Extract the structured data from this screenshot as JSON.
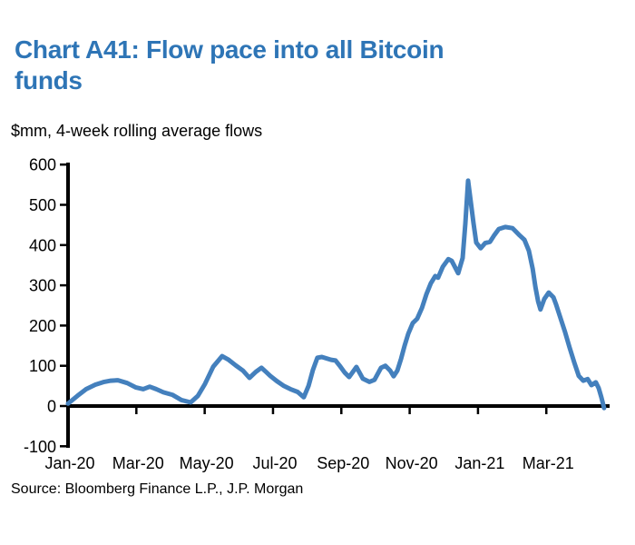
{
  "chart_data": {
    "type": "line",
    "title": "Chart A41: Flow pace into all Bitcoin\nfunds",
    "units_label": "$mm, 4-week rolling average flows",
    "source": "Source: Bloomberg Finance L.P., J.P. Morgan",
    "grid": false,
    "legend": "none",
    "x_axis": {
      "unit": "months since Jan-2020",
      "tick_months": [
        0,
        2,
        4,
        6,
        8,
        10,
        12,
        14
      ],
      "tick_labels": [
        "Jan-20",
        "Mar-20",
        "May-20",
        "Jul-20",
        "Sep-20",
        "Nov-20",
        "Jan-21",
        "Mar-21"
      ],
      "range_months": [
        0,
        15.85
      ]
    },
    "y_axis": {
      "ticks": [
        -100,
        0,
        100,
        200,
        300,
        400,
        500,
        600
      ],
      "min": -100,
      "max": 600
    },
    "colors": {
      "line": "#4480BD",
      "title": "#2E75B6",
      "axis": "#000000",
      "text": "#000000"
    },
    "series": [
      {
        "name": "4-week rolling average flows into all Bitcoin funds ($mm)",
        "points": [
          [
            0.0,
            6
          ],
          [
            0.27,
            25
          ],
          [
            0.53,
            42
          ],
          [
            0.8,
            53
          ],
          [
            1.06,
            60
          ],
          [
            1.25,
            63
          ],
          [
            1.46,
            64
          ],
          [
            1.73,
            57
          ],
          [
            1.99,
            46
          ],
          [
            2.2,
            42
          ],
          [
            2.39,
            48
          ],
          [
            2.58,
            42
          ],
          [
            2.79,
            34
          ],
          [
            3.05,
            28
          ],
          [
            3.32,
            15
          ],
          [
            3.59,
            9
          ],
          [
            3.8,
            25
          ],
          [
            4.01,
            55
          ],
          [
            4.25,
            98
          ],
          [
            4.51,
            124
          ],
          [
            4.7,
            115
          ],
          [
            4.91,
            101
          ],
          [
            5.12,
            88
          ],
          [
            5.31,
            70
          ],
          [
            5.5,
            85
          ],
          [
            5.66,
            95
          ],
          [
            5.79,
            85
          ],
          [
            5.92,
            75
          ],
          [
            6.11,
            62
          ],
          [
            6.32,
            50
          ],
          [
            6.51,
            42
          ],
          [
            6.72,
            35
          ],
          [
            6.9,
            22
          ],
          [
            7.04,
            50
          ],
          [
            7.17,
            90
          ],
          [
            7.3,
            120
          ],
          [
            7.43,
            122
          ],
          [
            7.7,
            115
          ],
          [
            7.83,
            113
          ],
          [
            7.97,
            98
          ],
          [
            8.1,
            83
          ],
          [
            8.23,
            72
          ],
          [
            8.44,
            97
          ],
          [
            8.63,
            68
          ],
          [
            8.82,
            60
          ],
          [
            8.97,
            65
          ],
          [
            9.16,
            95
          ],
          [
            9.29,
            100
          ],
          [
            9.43,
            88
          ],
          [
            9.53,
            74
          ],
          [
            9.64,
            88
          ],
          [
            9.75,
            118
          ],
          [
            9.85,
            150
          ],
          [
            9.96,
            180
          ],
          [
            10.09,
            206
          ],
          [
            10.22,
            217
          ],
          [
            10.36,
            244
          ],
          [
            10.49,
            278
          ],
          [
            10.62,
            305
          ],
          [
            10.75,
            323
          ],
          [
            10.83,
            319
          ],
          [
            10.97,
            346
          ],
          [
            11.13,
            365
          ],
          [
            11.23,
            361
          ],
          [
            11.42,
            330
          ],
          [
            11.55,
            368
          ],
          [
            11.63,
            454
          ],
          [
            11.71,
            560
          ],
          [
            11.87,
            454
          ],
          [
            11.95,
            406
          ],
          [
            12.08,
            392
          ],
          [
            12.21,
            405
          ],
          [
            12.35,
            408
          ],
          [
            12.48,
            425
          ],
          [
            12.61,
            440
          ],
          [
            12.8,
            445
          ],
          [
            13.01,
            442
          ],
          [
            13.22,
            424
          ],
          [
            13.36,
            413
          ],
          [
            13.49,
            386
          ],
          [
            13.6,
            341
          ],
          [
            13.68,
            296
          ],
          [
            13.76,
            260
          ],
          [
            13.83,
            240
          ],
          [
            13.94,
            266
          ],
          [
            14.07,
            282
          ],
          [
            14.21,
            270
          ],
          [
            14.29,
            251
          ],
          [
            14.42,
            217
          ],
          [
            14.55,
            183
          ],
          [
            14.68,
            146
          ],
          [
            14.82,
            108
          ],
          [
            14.95,
            75
          ],
          [
            15.08,
            63
          ],
          [
            15.21,
            67
          ],
          [
            15.32,
            52
          ],
          [
            15.45,
            59
          ],
          [
            15.53,
            45
          ],
          [
            15.61,
            22
          ],
          [
            15.69,
            -5
          ]
        ]
      }
    ]
  }
}
